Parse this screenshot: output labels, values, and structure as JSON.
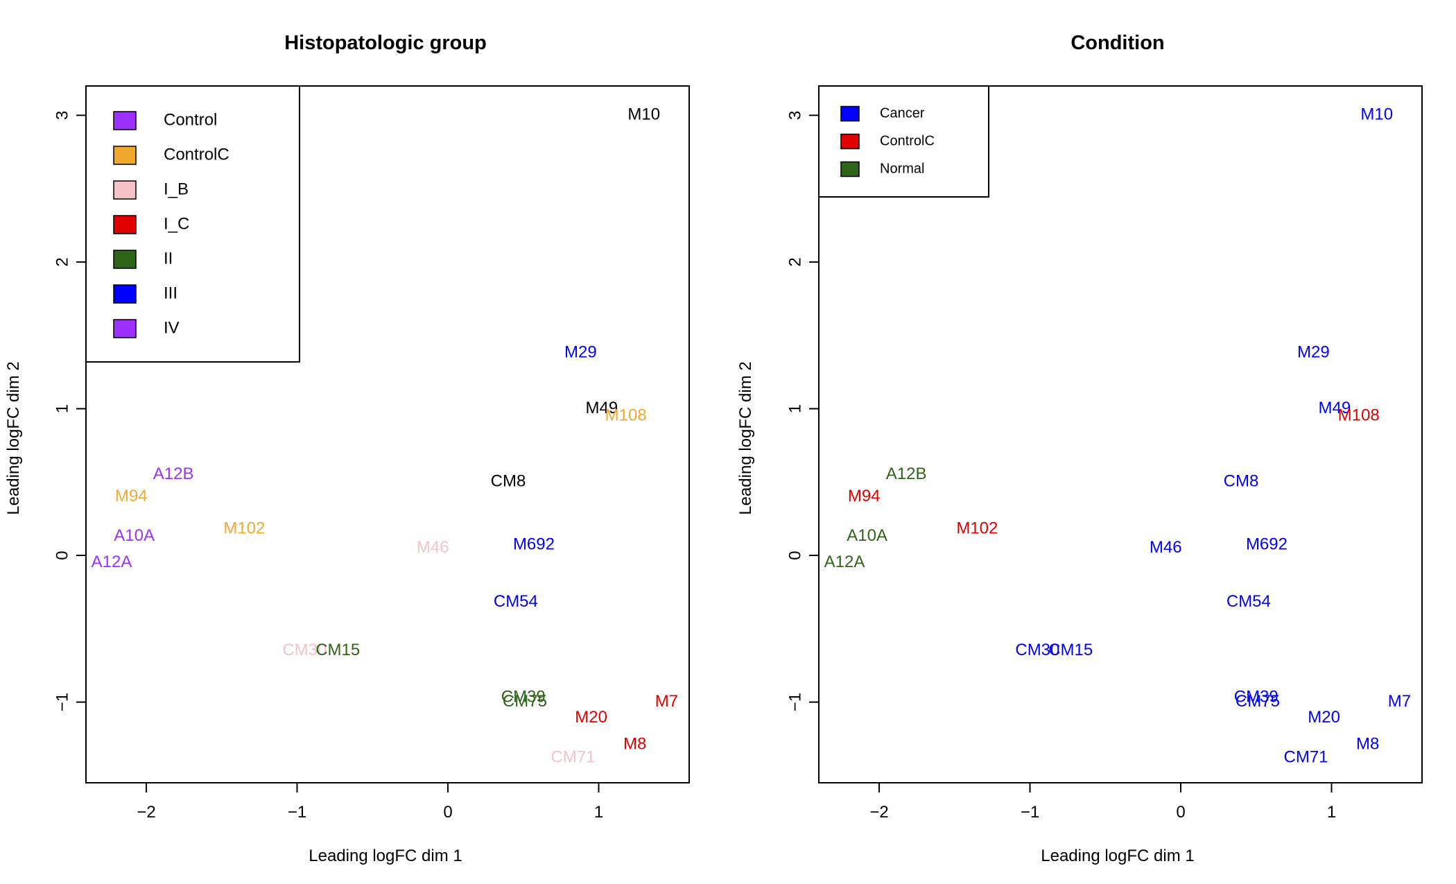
{
  "chart_data": [
    {
      "type": "scatter",
      "title": "Histopatologic group",
      "xlabel": "Leading logFC dim 1",
      "ylabel": "Leading logFC dim 2",
      "xlim": [
        -2.4,
        1.6
      ],
      "ylim": [
        -1.55,
        3.2
      ],
      "xticks": [
        -2,
        -1,
        0,
        1
      ],
      "yticks": [
        -1,
        0,
        1,
        2,
        3
      ],
      "grid": false,
      "legend_position": "top-left",
      "legend": [
        {
          "label": "Control",
          "color": "#9b30ff"
        },
        {
          "label": "ControlC",
          "color": "#f0a830"
        },
        {
          "label": "I_B",
          "color": "#f4c2c8"
        },
        {
          "label": "I_C",
          "color": "#e00000"
        },
        {
          "label": "II",
          "color": "#2e6418"
        },
        {
          "label": "III",
          "color": "#0000ff"
        },
        {
          "label": "IV",
          "color": "#9b30ff"
        }
      ],
      "points": [
        {
          "label": "M10",
          "x": 1.3,
          "y": 3.0,
          "color": "#000000"
        },
        {
          "label": "M29",
          "x": 0.88,
          "y": 1.38,
          "color": "#0000ff"
        },
        {
          "label": "M49",
          "x": 1.02,
          "y": 1.0,
          "color": "#000000"
        },
        {
          "label": "M108",
          "x": 1.18,
          "y": 0.95,
          "color": "#f0a830"
        },
        {
          "label": "A12B",
          "x": -1.82,
          "y": 0.55,
          "color": "#9b30ff"
        },
        {
          "label": "M94",
          "x": -2.1,
          "y": 0.4,
          "color": "#f0a830"
        },
        {
          "label": "CM8",
          "x": 0.4,
          "y": 0.5,
          "color": "#000000"
        },
        {
          "label": "A10A",
          "x": -2.08,
          "y": 0.13,
          "color": "#9b30ff"
        },
        {
          "label": "M102",
          "x": -1.35,
          "y": 0.18,
          "color": "#f0a830"
        },
        {
          "label": "M46",
          "x": -0.1,
          "y": 0.05,
          "color": "#f4c2c8"
        },
        {
          "label": "M692",
          "x": 0.57,
          "y": 0.07,
          "color": "#0000ff"
        },
        {
          "label": "A12A",
          "x": -2.23,
          "y": -0.05,
          "color": "#9b30ff"
        },
        {
          "label": "CM54",
          "x": 0.45,
          "y": -0.32,
          "color": "#0000ff"
        },
        {
          "label": "CM30",
          "x": -0.95,
          "y": -0.65,
          "color": "#f4c2c8"
        },
        {
          "label": "CM15",
          "x": -0.73,
          "y": -0.65,
          "color": "#2e6418"
        },
        {
          "label": "CM39",
          "x": 0.5,
          "y": -0.97,
          "color": "#2e6418"
        },
        {
          "label": "CM75",
          "x": 0.51,
          "y": -1.0,
          "color": "#2e6418"
        },
        {
          "label": "M7",
          "x": 1.45,
          "y": -1.0,
          "color": "#e00000"
        },
        {
          "label": "M20",
          "x": 0.95,
          "y": -1.11,
          "color": "#e00000"
        },
        {
          "label": "M8",
          "x": 1.24,
          "y": -1.29,
          "color": "#e00000"
        },
        {
          "label": "CM71",
          "x": 0.83,
          "y": -1.38,
          "color": "#f4c2c8"
        }
      ]
    },
    {
      "type": "scatter",
      "title": "Condition",
      "xlabel": "Leading logFC dim 1",
      "ylabel": "Leading logFC dim 2",
      "xlim": [
        -2.4,
        1.6
      ],
      "ylim": [
        -1.55,
        3.2
      ],
      "xticks": [
        -2,
        -1,
        0,
        1
      ],
      "yticks": [
        -1,
        0,
        1,
        2,
        3
      ],
      "grid": false,
      "legend_position": "top-left",
      "legend": [
        {
          "label": "Cancer",
          "color": "#0000ff"
        },
        {
          "label": "ControlC",
          "color": "#e00000"
        },
        {
          "label": "Normal",
          "color": "#2e6418"
        }
      ],
      "points": [
        {
          "label": "M10",
          "x": 1.3,
          "y": 3.0,
          "color": "#0000ff"
        },
        {
          "label": "M29",
          "x": 0.88,
          "y": 1.38,
          "color": "#0000ff"
        },
        {
          "label": "M49",
          "x": 1.02,
          "y": 1.0,
          "color": "#0000ff"
        },
        {
          "label": "M108",
          "x": 1.18,
          "y": 0.95,
          "color": "#e00000"
        },
        {
          "label": "A12B",
          "x": -1.82,
          "y": 0.55,
          "color": "#2e6418"
        },
        {
          "label": "M94",
          "x": -2.1,
          "y": 0.4,
          "color": "#e00000"
        },
        {
          "label": "CM8",
          "x": 0.4,
          "y": 0.5,
          "color": "#0000ff"
        },
        {
          "label": "A10A",
          "x": -2.08,
          "y": 0.13,
          "color": "#2e6418"
        },
        {
          "label": "M102",
          "x": -1.35,
          "y": 0.18,
          "color": "#e00000"
        },
        {
          "label": "M46",
          "x": -0.1,
          "y": 0.05,
          "color": "#0000ff"
        },
        {
          "label": "M692",
          "x": 0.57,
          "y": 0.07,
          "color": "#0000ff"
        },
        {
          "label": "A12A",
          "x": -2.23,
          "y": -0.05,
          "color": "#2e6418"
        },
        {
          "label": "CM54",
          "x": 0.45,
          "y": -0.32,
          "color": "#0000ff"
        },
        {
          "label": "CM30",
          "x": -0.95,
          "y": -0.65,
          "color": "#0000ff"
        },
        {
          "label": "CM15",
          "x": -0.73,
          "y": -0.65,
          "color": "#0000ff"
        },
        {
          "label": "CM39",
          "x": 0.5,
          "y": -0.97,
          "color": "#0000ff"
        },
        {
          "label": "CM75",
          "x": 0.51,
          "y": -1.0,
          "color": "#0000ff"
        },
        {
          "label": "M7",
          "x": 1.45,
          "y": -1.0,
          "color": "#0000ff"
        },
        {
          "label": "M20",
          "x": 0.95,
          "y": -1.11,
          "color": "#0000ff"
        },
        {
          "label": "M8",
          "x": 1.24,
          "y": -1.29,
          "color": "#0000ff"
        },
        {
          "label": "CM71",
          "x": 0.83,
          "y": -1.38,
          "color": "#0000ff"
        }
      ]
    }
  ]
}
